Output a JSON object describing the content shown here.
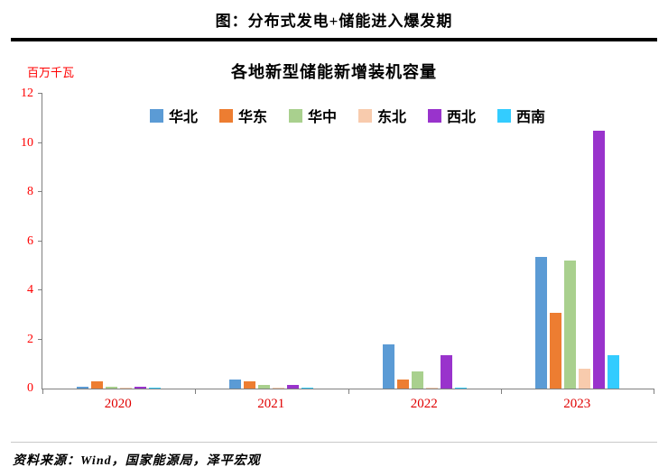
{
  "page": {
    "title": "图：分布式发电+储能进入爆发期",
    "source": "资料来源：Wind，国家能源局，泽平宏观"
  },
  "chart_data": {
    "type": "bar",
    "title": "各地新型储能新增装机容量",
    "unit_label": "百万千瓦",
    "categories": [
      "2020",
      "2021",
      "2022",
      "2023"
    ],
    "series": [
      {
        "name": "华北",
        "color": "#5b9bd5",
        "values": [
          0.06,
          0.35,
          1.8,
          5.35
        ]
      },
      {
        "name": "华东",
        "color": "#ed7d31",
        "values": [
          0.28,
          0.28,
          0.35,
          3.1
        ]
      },
      {
        "name": "华中",
        "color": "#a9d08e",
        "values": [
          0.06,
          0.13,
          0.7,
          5.2
        ]
      },
      {
        "name": "东北",
        "color": "#f8cbad",
        "values": [
          0.02,
          0.03,
          0.05,
          0.8
        ]
      },
      {
        "name": "西北",
        "color": "#9933cc",
        "values": [
          0.07,
          0.14,
          1.35,
          10.5
        ]
      },
      {
        "name": "西南",
        "color": "#33ccff",
        "values": [
          0.01,
          0.02,
          0.03,
          1.35
        ]
      }
    ],
    "ylim": [
      0,
      12
    ],
    "yticks": [
      0,
      2,
      4,
      6,
      8,
      10,
      12
    ],
    "grid": false,
    "legend_position": "top",
    "axis_label_color": "#ff0000"
  }
}
